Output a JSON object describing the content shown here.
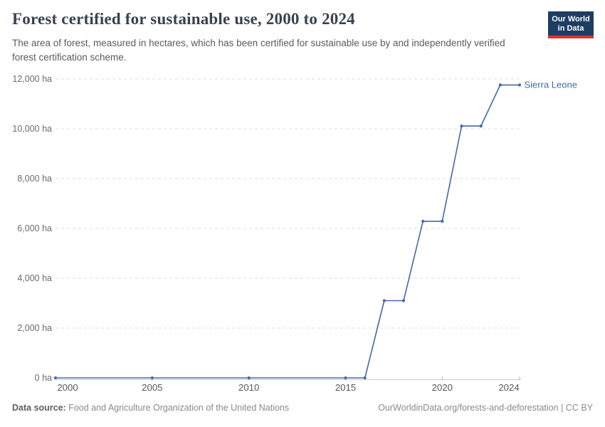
{
  "header": {
    "title": "Forest certified for sustainable use, 2000 to 2024",
    "subtitle": "The area of forest, measured in hectares, which has been certified for sustainable use by and independently verified forest certification scheme."
  },
  "logo": {
    "line1": "Our World",
    "line2": "in Data",
    "bg_color": "#1d3d63",
    "bar_color": "#d8352b"
  },
  "chart_data": {
    "type": "line",
    "title": "Forest certified for sustainable use, 2000 to 2024",
    "unit": "ha",
    "entity_label": "Sierra Leone",
    "x": [
      2000,
      2005,
      2010,
      2015,
      2016,
      2017,
      2018,
      2019,
      2020,
      2021,
      2022,
      2023,
      2024
    ],
    "series": [
      {
        "name": "Sierra Leone",
        "values": [
          0,
          0,
          0,
          0,
          0,
          3100,
          3100,
          6290,
          6290,
          10110,
          10110,
          11760,
          11760
        ]
      }
    ],
    "xlim": [
      2000,
      2024
    ],
    "ylim": [
      0,
      12000
    ],
    "yticks": [
      {
        "value": 0,
        "label": "0 ha"
      },
      {
        "value": 2000,
        "label": "2,000 ha"
      },
      {
        "value": 4000,
        "label": "4,000 ha"
      },
      {
        "value": 6000,
        "label": "6,000 ha"
      },
      {
        "value": 8000,
        "label": "8,000 ha"
      },
      {
        "value": 10000,
        "label": "10,000 ha"
      },
      {
        "value": 12000,
        "label": "12,000 ha"
      }
    ],
    "xticks": [
      {
        "value": 2000,
        "label": "2000"
      },
      {
        "value": 2005,
        "label": "2005"
      },
      {
        "value": 2010,
        "label": "2010"
      },
      {
        "value": 2015,
        "label": "2015"
      },
      {
        "value": 2020,
        "label": "2020"
      },
      {
        "value": 2024,
        "label": "2024"
      }
    ],
    "grid": "horizontal-dashed",
    "legend_position": "end-of-line-label",
    "line_color": "#4569a3",
    "gridline_color": "#dedede",
    "axis_color": "#c9c9c9",
    "ytick_label_color": "#6b6b6b",
    "xtick_label_color": "#575757"
  },
  "footer": {
    "source_label": "Data source:",
    "source_text": "Food and Agriculture Organization of the United Nations",
    "link": "OurWorldinData.org/forests-and-deforestation",
    "separator": "|",
    "license": "CC BY"
  }
}
